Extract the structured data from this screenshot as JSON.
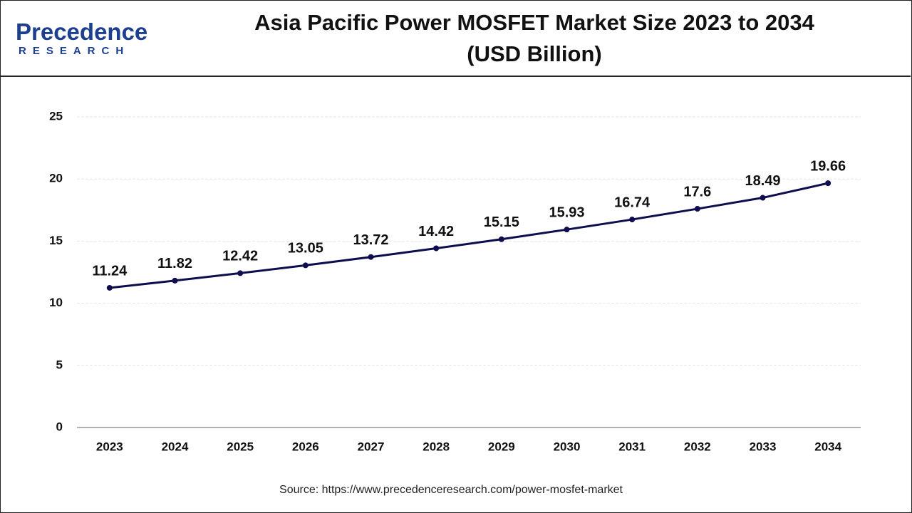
{
  "logo": {
    "name": "Precedence",
    "subname": "RESEARCH"
  },
  "chart_data": {
    "type": "line",
    "title": "Asia Pacific Power MOSFET Market Size 2023 to 2034",
    "subtitle": "(USD Billion)",
    "source": "Source: https://www.precedenceresearch.com/power-mosfet-market",
    "categories": [
      "2023",
      "2024",
      "2025",
      "2026",
      "2027",
      "2028",
      "2029",
      "2030",
      "2031",
      "2032",
      "2033",
      "2034"
    ],
    "series": [
      {
        "name": "Market Size",
        "color": "#0e0e4f",
        "values": [
          11.24,
          11.82,
          12.42,
          13.05,
          13.72,
          14.42,
          15.15,
          15.93,
          16.74,
          17.6,
          18.49,
          19.66
        ]
      }
    ],
    "ylim": [
      0,
      25
    ],
    "yticks": [
      0,
      5,
      10,
      15,
      20,
      25
    ],
    "grid": true
  }
}
